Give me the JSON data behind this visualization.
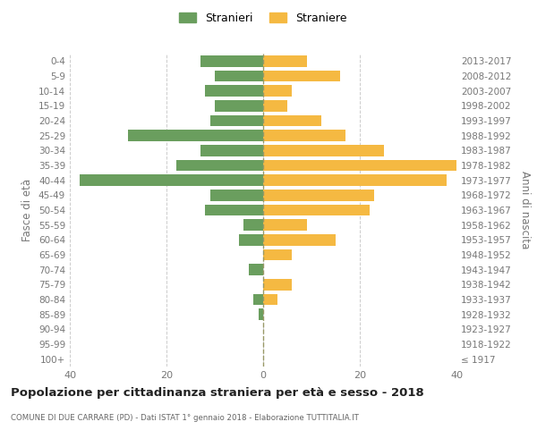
{
  "age_groups": [
    "100+",
    "95-99",
    "90-94",
    "85-89",
    "80-84",
    "75-79",
    "70-74",
    "65-69",
    "60-64",
    "55-59",
    "50-54",
    "45-49",
    "40-44",
    "35-39",
    "30-34",
    "25-29",
    "20-24",
    "15-19",
    "10-14",
    "5-9",
    "0-4"
  ],
  "birth_years": [
    "≤ 1917",
    "1918-1922",
    "1923-1927",
    "1928-1932",
    "1933-1937",
    "1938-1942",
    "1943-1947",
    "1948-1952",
    "1953-1957",
    "1958-1962",
    "1963-1967",
    "1968-1972",
    "1973-1977",
    "1978-1982",
    "1983-1987",
    "1988-1992",
    "1993-1997",
    "1998-2002",
    "2003-2007",
    "2008-2012",
    "2013-2017"
  ],
  "stranieri": [
    0,
    0,
    0,
    1,
    2,
    0,
    3,
    0,
    5,
    4,
    12,
    11,
    38,
    18,
    13,
    28,
    11,
    10,
    12,
    10,
    13
  ],
  "straniere": [
    0,
    0,
    0,
    0,
    3,
    6,
    0,
    6,
    15,
    9,
    22,
    23,
    38,
    40,
    25,
    17,
    12,
    5,
    6,
    16,
    9
  ],
  "male_color": "#6a9e5e",
  "female_color": "#f5b942",
  "title": "Popolazione per cittadinanza straniera per età e sesso - 2018",
  "subtitle": "COMUNE DI DUE CARRARE (PD) - Dati ISTAT 1° gennaio 2018 - Elaborazione TUTTITALIA.IT",
  "ylabel_left": "Fasce di età",
  "ylabel_right": "Anni di nascita",
  "legend_stranieri": "Stranieri",
  "legend_straniere": "Straniere",
  "xlim": 40,
  "background_color": "#ffffff",
  "grid_color": "#cccccc"
}
